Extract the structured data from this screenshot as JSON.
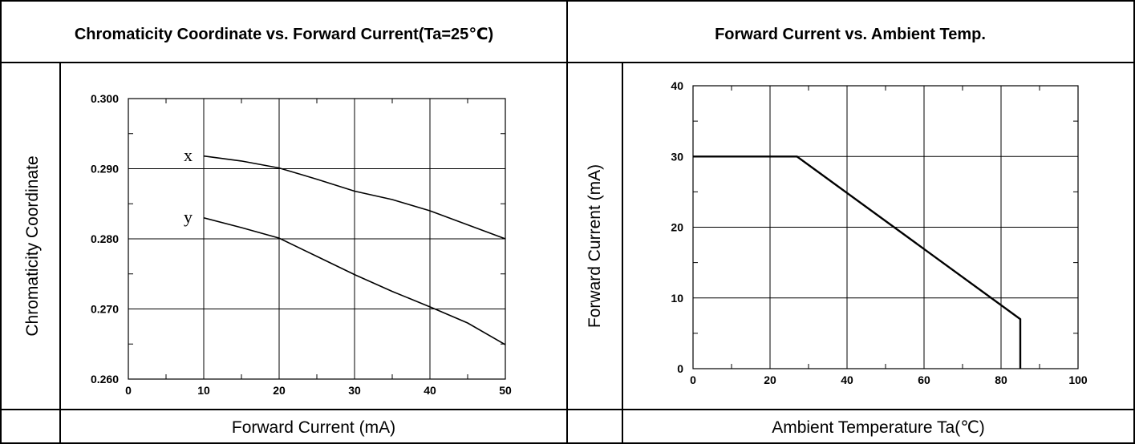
{
  "chart_data": [
    {
      "type": "line",
      "title": "Chromaticity Coordinate vs. Forward Current(Ta=25℃)",
      "xlabel": "Forward Current (mA)",
      "ylabel": "Chromaticity Coordinate",
      "xlim": [
        0,
        50
      ],
      "ylim": [
        0.26,
        0.3
      ],
      "x_ticks": [
        "0",
        "10",
        "20",
        "30",
        "40",
        "50"
      ],
      "y_ticks": [
        "0.260",
        "0.270",
        "0.280",
        "0.290",
        "0.300"
      ],
      "grid": true,
      "series": [
        {
          "name": "x",
          "x": [
            10,
            15,
            20,
            25,
            30,
            35,
            40,
            45,
            50
          ],
          "y": [
            0.2918,
            0.2911,
            0.2901,
            0.2885,
            0.2868,
            0.2856,
            0.284,
            0.282,
            0.28
          ]
        },
        {
          "name": "y",
          "x": [
            10,
            15,
            20,
            25,
            30,
            35,
            40,
            45,
            50
          ],
          "y": [
            0.283,
            0.2816,
            0.2801,
            0.2775,
            0.2749,
            0.2725,
            0.2703,
            0.268,
            0.2649
          ]
        }
      ]
    },
    {
      "type": "line",
      "title": "Forward Current vs. Ambient Temp.",
      "xlabel": "Ambient Temperature Ta(℃)",
      "ylabel": "Forward Current (mA)",
      "xlim": [
        0,
        100
      ],
      "ylim": [
        0,
        40
      ],
      "x_ticks": [
        "0",
        "20",
        "40",
        "60",
        "80",
        "100"
      ],
      "y_ticks": [
        "0",
        "10",
        "20",
        "30",
        "40"
      ],
      "grid": true,
      "series": [
        {
          "x": [
            0,
            27,
            85,
            85
          ],
          "y": [
            30,
            30,
            7,
            0
          ]
        }
      ]
    }
  ]
}
